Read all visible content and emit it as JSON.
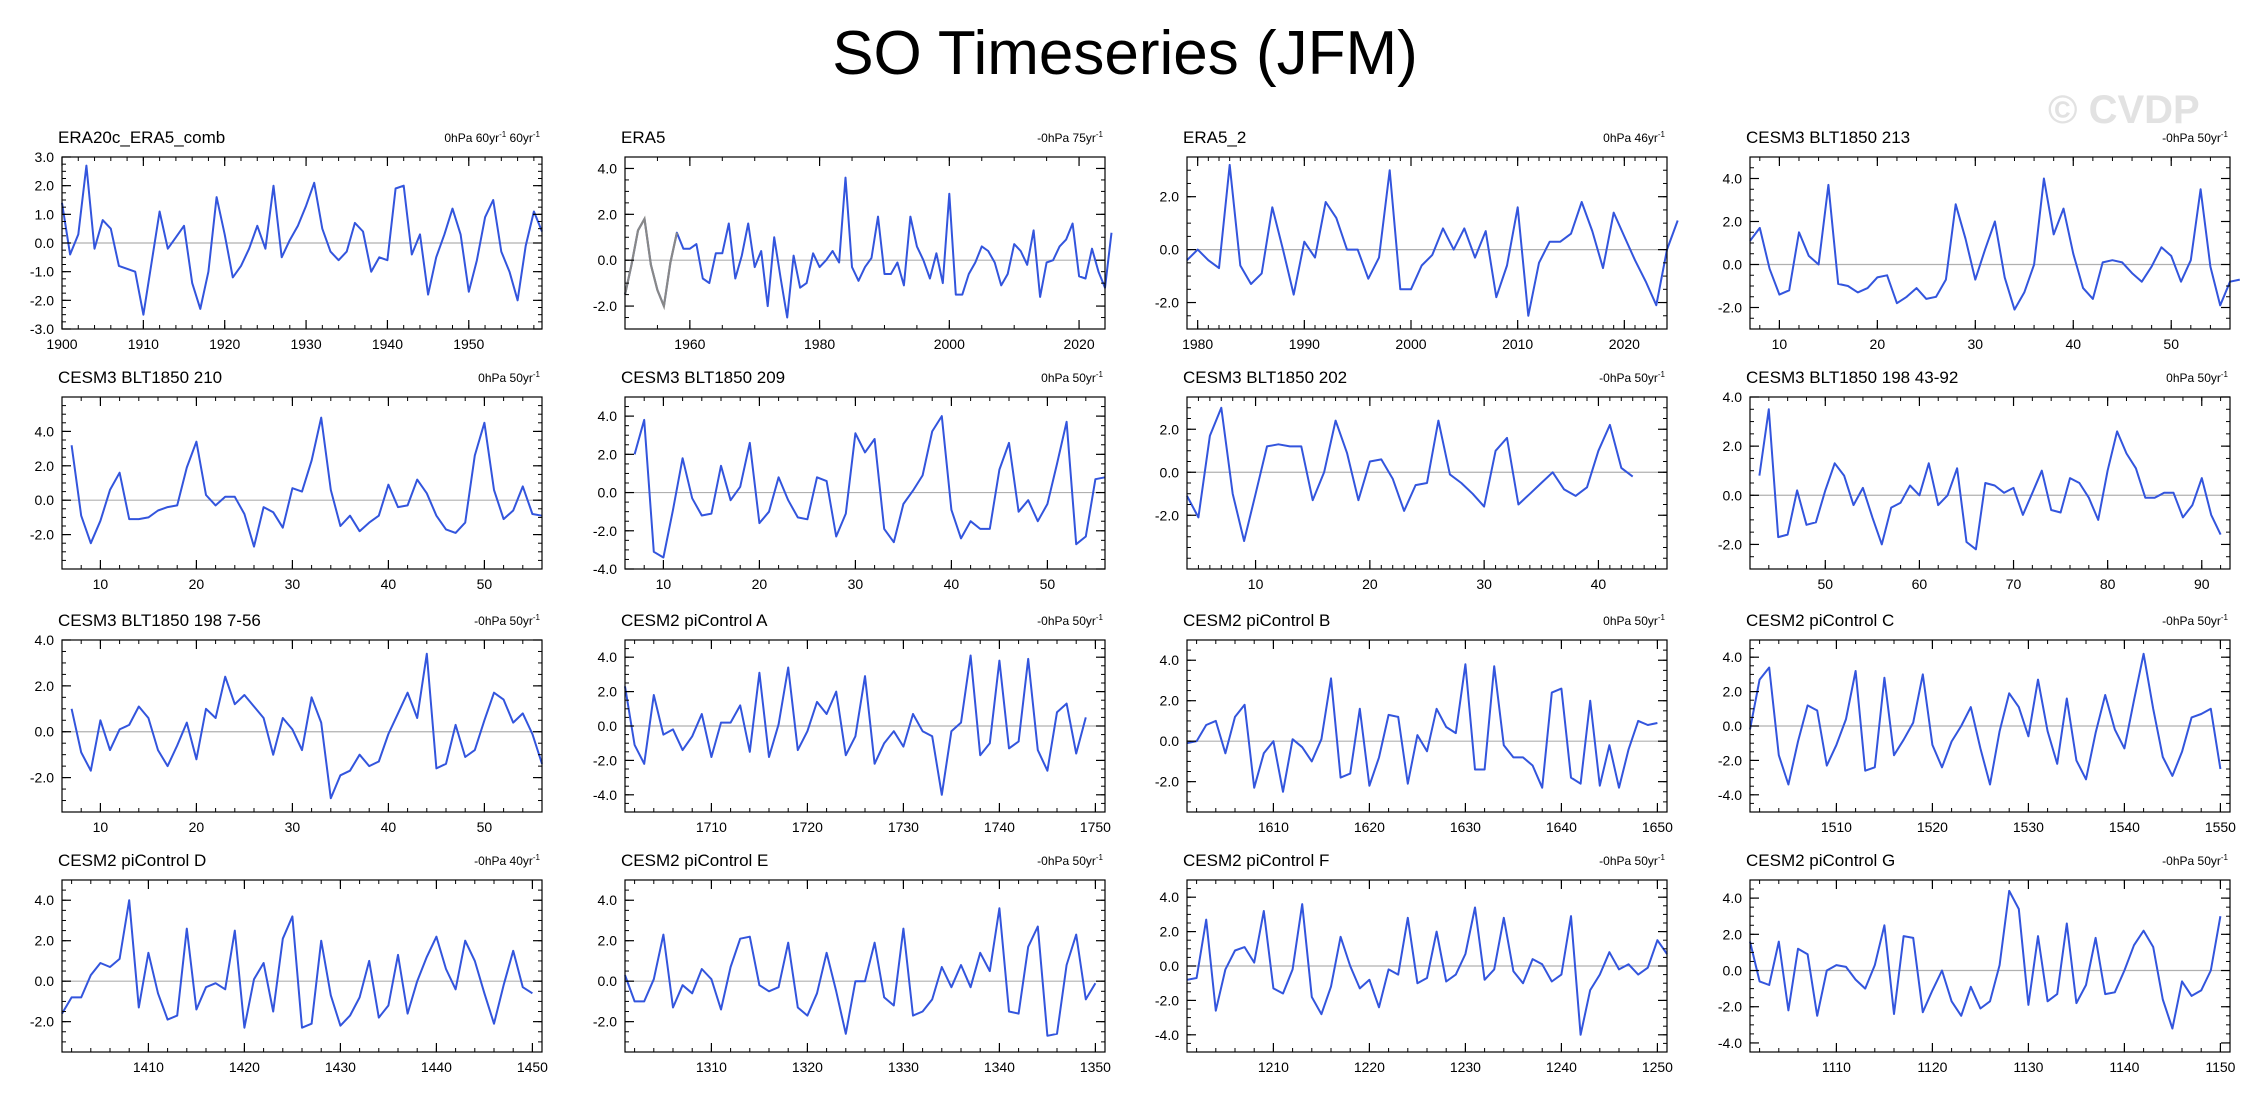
{
  "title": "SO Timeseries (JFM)",
  "watermark": "© CVDP",
  "colors": {
    "line": "#3355dd",
    "line_overlay": "#888888",
    "zero": "#b0b0b0",
    "text": "#000000"
  },
  "chart_data": [
    {
      "type": "line",
      "title": "ERA20c_ERA5_comb",
      "trend": "0hPa 60yr",
      "trend2": " 60yr",
      "trend_sup": "-1",
      "xlim": [
        1900,
        1959
      ],
      "ylim": [
        -3,
        3
      ],
      "xticks": [
        1900,
        1910,
        1920,
        1930,
        1940,
        1950
      ],
      "yticks": [
        -3,
        -2,
        -1,
        0,
        1,
        2,
        3
      ],
      "yticklabels": [
        "-3.0",
        "-2.0",
        "-1.0",
        "0.0",
        "1.0",
        "2.0",
        "3.0"
      ],
      "x0": 1900,
      "values": [
        1.4,
        -0.4,
        0.3,
        2.7,
        -0.2,
        0.8,
        0.5,
        -0.8,
        -0.9,
        -1.0,
        -2.5,
        -0.7,
        1.1,
        -0.2,
        0.2,
        0.6,
        -1.4,
        -2.3,
        -1.0,
        1.6,
        0.3,
        -1.2,
        -0.8,
        -0.2,
        0.6,
        -0.2,
        2.0,
        -0.5,
        0.1,
        0.6,
        1.3,
        2.1,
        0.5,
        -0.3,
        -0.6,
        -0.3,
        0.7,
        0.4,
        -1.0,
        -0.5,
        -0.6,
        1.9,
        2.0,
        -0.4,
        0.3,
        -1.8,
        -0.5,
        0.3,
        1.2,
        0.3,
        -1.7,
        -0.6,
        0.9,
        1.5,
        -0.3,
        -1.0,
        -2.0,
        -0.1,
        1.1,
        0.4
      ]
    },
    {
      "type": "line",
      "title": "ERA5",
      "trend": "-0hPa 75yr",
      "trend_sup": "-1",
      "xlim": [
        1950,
        2024
      ],
      "ylim": [
        -3,
        4.5
      ],
      "xticks": [
        1960,
        1980,
        2000,
        2020
      ],
      "yticks": [
        -2,
        0,
        2,
        4
      ],
      "yticklabels": [
        "-2.0",
        "0.0",
        "2.0",
        "4.0"
      ],
      "x0": 1950,
      "values": [
        -1.5,
        -0.2,
        1.3,
        1.8,
        -0.2,
        -1.3,
        -2.0,
        -0.1,
        1.2,
        0.5,
        0.5,
        0.7,
        -0.8,
        -1.0,
        0.3,
        0.3,
        1.6,
        -0.8,
        0.2,
        1.6,
        -0.3,
        0.4,
        -2.0,
        1.0,
        -0.8,
        -2.5,
        0.2,
        -1.2,
        -1.0,
        0.3,
        -0.3,
        0.0,
        0.4,
        -0.1,
        3.6,
        -0.3,
        -0.9,
        -0.3,
        0.1,
        1.9,
        -0.6,
        -0.6,
        -0.1,
        -1.1,
        1.9,
        0.6,
        0.0,
        -0.8,
        0.3,
        -1.0,
        2.9,
        -1.5,
        -1.5,
        -0.6,
        -0.1,
        0.6,
        0.4,
        -0.1,
        -1.1,
        -0.6,
        0.7,
        0.4,
        -0.2,
        1.3,
        -1.6,
        -0.1,
        0.0,
        0.6,
        0.9,
        1.6,
        -0.7,
        -0.8,
        0.5,
        -0.5,
        -1.2,
        1.2
      ]
    },
    {
      "type": "line",
      "title": "ERA5_2",
      "trend": "0hPa 46yr",
      "trend_sup": "-1",
      "xlim": [
        1979,
        2024
      ],
      "ylim": [
        -3,
        3.5
      ],
      "xticks": [
        1980,
        1990,
        2000,
        2010,
        2020
      ],
      "yticks": [
        -2,
        0,
        2
      ],
      "yticklabels": [
        "-2.0",
        "0.0",
        "2.0"
      ],
      "x0": 1979,
      "values": [
        -0.4,
        0.0,
        -0.4,
        -0.7,
        3.2,
        -0.6,
        -1.3,
        -0.9,
        1.6,
        0.0,
        -1.7,
        0.3,
        -0.3,
        1.8,
        1.2,
        0.0,
        0.0,
        -1.1,
        -0.3,
        3.0,
        -1.5,
        -1.5,
        -0.6,
        -0.2,
        0.8,
        0.0,
        0.8,
        -0.3,
        0.7,
        -1.8,
        -0.6,
        1.6,
        -2.5,
        -0.5,
        0.3,
        0.3,
        0.6,
        1.8,
        0.7,
        -0.7,
        1.4,
        0.5,
        -0.4,
        -1.2,
        -2.1,
        0.0,
        1.1
      ]
    },
    {
      "type": "line",
      "title": "CESM3 BLT1850 213",
      "trend": "-0hPa 50yr",
      "trend_sup": "-1",
      "xlim": [
        7,
        56
      ],
      "ylim": [
        -3,
        5
      ],
      "xticks": [
        10,
        20,
        30,
        40,
        50
      ],
      "yticks": [
        -2,
        0,
        2,
        4
      ],
      "yticklabels": [
        "-2.0",
        "0.0",
        "2.0",
        "4.0"
      ],
      "x0": 7,
      "values": [
        1.1,
        1.7,
        -0.2,
        -1.4,
        -1.2,
        1.5,
        0.4,
        0.0,
        3.7,
        -0.9,
        -1.0,
        -1.3,
        -1.1,
        -0.6,
        -0.5,
        -1.8,
        -1.5,
        -1.1,
        -1.6,
        -1.5,
        -0.7,
        2.8,
        1.2,
        -0.7,
        0.7,
        2.0,
        -0.6,
        -2.1,
        -1.3,
        0.0,
        4.0,
        1.4,
        2.6,
        0.5,
        -1.1,
        -1.6,
        0.1,
        0.2,
        0.1,
        -0.4,
        -0.8,
        -0.1,
        0.8,
        0.4,
        -0.8,
        0.2,
        3.5,
        -0.1,
        -1.9,
        -0.8,
        -0.7
      ]
    },
    {
      "type": "line",
      "title": "CESM3 BLT1850 210",
      "trend": "0hPa 50yr",
      "trend_sup": "-1",
      "xlim": [
        6,
        56
      ],
      "ylim": [
        -4,
        6
      ],
      "xticks": [
        10,
        20,
        30,
        40,
        50
      ],
      "yticks": [
        -2,
        0,
        2,
        4
      ],
      "yticklabels": [
        "-2.0",
        "0.0",
        "2.0",
        "4.0"
      ],
      "x0": 7,
      "values": [
        3.2,
        -0.9,
        -2.5,
        -1.2,
        0.6,
        1.6,
        -1.1,
        -1.1,
        -1.0,
        -0.6,
        -0.4,
        -0.3,
        1.9,
        3.4,
        0.3,
        -0.3,
        0.2,
        0.2,
        -0.8,
        -2.7,
        -0.4,
        -0.7,
        -1.6,
        0.7,
        0.5,
        2.3,
        4.8,
        0.6,
        -1.5,
        -0.9,
        -1.8,
        -1.3,
        -0.9,
        0.9,
        -0.4,
        -0.3,
        1.2,
        0.4,
        -0.9,
        -1.7,
        -1.9,
        -1.3,
        2.6,
        4.5,
        0.6,
        -1.1,
        -0.6,
        0.8,
        -0.8,
        -0.9
      ]
    },
    {
      "type": "line",
      "title": "CESM3 BLT1850 209",
      "trend": "0hPa 50yr",
      "trend_sup": "-1",
      "xlim": [
        6,
        56
      ],
      "ylim": [
        -4,
        5
      ],
      "xticks": [
        10,
        20,
        30,
        40,
        50
      ],
      "yticks": [
        -4,
        -2,
        0,
        2,
        4
      ],
      "yticklabels": [
        "-4.0",
        "-2.0",
        "0.0",
        "2.0",
        "4.0"
      ],
      "x0": 7,
      "values": [
        2.0,
        3.8,
        -3.1,
        -3.4,
        -0.9,
        1.8,
        -0.3,
        -1.2,
        -1.1,
        1.4,
        -0.4,
        0.3,
        2.6,
        -1.6,
        -1.0,
        0.8,
        -0.4,
        -1.3,
        -1.4,
        0.8,
        0.6,
        -2.3,
        -1.1,
        3.1,
        2.1,
        2.8,
        -1.9,
        -2.6,
        -0.6,
        0.1,
        0.9,
        3.2,
        4.0,
        -0.9,
        -2.4,
        -1.5,
        -1.9,
        -1.9,
        1.2,
        2.6,
        -1.0,
        -0.4,
        -1.5,
        -0.6,
        1.5,
        3.7,
        -2.7,
        -2.3,
        0.7,
        0.8
      ]
    },
    {
      "type": "line",
      "title": "CESM3 BLT1850 202",
      "trend": "-0hPa 50yr",
      "trend_sup": "-1",
      "xlim": [
        4,
        46
      ],
      "ylim": [
        -4.5,
        3.5
      ],
      "xticks": [
        10,
        20,
        30,
        40
      ],
      "yticks": [
        -2,
        0,
        2
      ],
      "yticklabels": [
        "-2.0",
        "0.0",
        "2.0"
      ],
      "x0": 4,
      "values": [
        -1.1,
        -2.1,
        1.7,
        3.0,
        -1.0,
        -3.2,
        -1.0,
        1.2,
        1.3,
        1.2,
        1.2,
        -1.3,
        0.0,
        2.4,
        0.9,
        -1.3,
        0.5,
        0.6,
        -0.3,
        -1.8,
        -0.6,
        -0.5,
        2.4,
        -0.1,
        -0.5,
        -1.0,
        -1.6,
        1.0,
        1.6,
        -1.5,
        -1.0,
        -0.5,
        0.0,
        -0.8,
        -1.1,
        -0.7,
        1.0,
        2.2,
        0.2,
        -0.2
      ]
    },
    {
      "type": "line",
      "title": "CESM3 BLT1850 198 43-92",
      "trend": "0hPa 50yr",
      "trend_sup": "-1",
      "xlim": [
        42,
        93
      ],
      "ylim": [
        -3,
        4
      ],
      "xticks": [
        50,
        60,
        70,
        80,
        90
      ],
      "yticks": [
        -2,
        0,
        2,
        4
      ],
      "yticklabels": [
        "-2.0",
        "0.0",
        "2.0",
        "4.0"
      ],
      "x0": 43,
      "values": [
        0.8,
        3.5,
        -1.7,
        -1.6,
        0.2,
        -1.2,
        -1.1,
        0.2,
        1.3,
        0.8,
        -0.4,
        0.3,
        -0.9,
        -2.0,
        -0.5,
        -0.3,
        0.4,
        0.0,
        1.3,
        -0.4,
        0.0,
        1.1,
        -1.9,
        -2.2,
        0.5,
        0.4,
        0.1,
        0.3,
        -0.8,
        0.1,
        1.0,
        -0.6,
        -0.7,
        0.7,
        0.5,
        -0.1,
        -1.0,
        1.0,
        2.6,
        1.7,
        1.1,
        -0.1,
        -0.1,
        0.1,
        0.1,
        -0.9,
        -0.4,
        0.7,
        -0.8,
        -1.6
      ]
    },
    {
      "type": "line",
      "title": "CESM3 BLT1850 198 7-56",
      "trend": "-0hPa 50yr",
      "trend_sup": "-1",
      "xlim": [
        6,
        56
      ],
      "ylim": [
        -3.5,
        4
      ],
      "xticks": [
        10,
        20,
        30,
        40,
        50
      ],
      "yticks": [
        -2,
        0,
        2,
        4
      ],
      "yticklabels": [
        "-2.0",
        "0.0",
        "2.0",
        "4.0"
      ],
      "x0": 7,
      "values": [
        1.0,
        -0.9,
        -1.7,
        0.5,
        -0.8,
        0.1,
        0.3,
        1.1,
        0.6,
        -0.8,
        -1.5,
        -0.6,
        0.4,
        -1.2,
        1.0,
        0.6,
        2.4,
        1.2,
        1.6,
        1.1,
        0.6,
        -1.0,
        0.6,
        0.1,
        -0.8,
        1.5,
        0.4,
        -2.9,
        -1.9,
        -1.7,
        -1.0,
        -1.5,
        -1.3,
        -0.1,
        0.8,
        1.7,
        0.6,
        3.4,
        -1.6,
        -1.4,
        0.3,
        -1.1,
        -0.8,
        0.5,
        1.7,
        1.4,
        0.4,
        0.8,
        -0.1,
        -1.4
      ]
    },
    {
      "type": "line",
      "title": "CESM2 piControl A",
      "trend": "-0hPa 50yr",
      "trend_sup": "-1",
      "xlim": [
        1701,
        1751
      ],
      "ylim": [
        -5,
        5
      ],
      "xticks": [
        1710,
        1720,
        1730,
        1740,
        1750
      ],
      "yticks": [
        -4,
        -2,
        0,
        2,
        4
      ],
      "yticklabels": [
        "-4.0",
        "-2.0",
        "0.0",
        "2.0",
        "4.0"
      ],
      "x0": 1701,
      "values": [
        2.3,
        -1.1,
        -2.2,
        1.8,
        -0.5,
        -0.2,
        -1.4,
        -0.6,
        0.7,
        -1.8,
        0.2,
        0.2,
        1.2,
        -1.5,
        3.1,
        -1.8,
        0.1,
        3.4,
        -1.4,
        -0.3,
        1.4,
        0.7,
        2.0,
        -1.7,
        -0.6,
        2.9,
        -2.2,
        -1.0,
        -0.3,
        -1.2,
        0.7,
        -0.3,
        -0.6,
        -4.0,
        -0.3,
        0.2,
        4.1,
        -1.7,
        -1.0,
        3.8,
        -1.3,
        -0.9,
        3.9,
        -1.4,
        -2.6,
        0.8,
        1.3,
        -1.6,
        0.5
      ]
    },
    {
      "type": "line",
      "title": "CESM2 piControl B",
      "trend": "0hPa 50yr",
      "trend_sup": "-1",
      "xlim": [
        1601,
        1651
      ],
      "ylim": [
        -3.5,
        5
      ],
      "xticks": [
        1610,
        1620,
        1630,
        1640,
        1650
      ],
      "yticks": [
        -2,
        0,
        2,
        4
      ],
      "yticklabels": [
        "-2.0",
        "0.0",
        "2.0",
        "4.0"
      ],
      "x0": 1601,
      "values": [
        -0.1,
        0.0,
        0.8,
        1.0,
        -0.6,
        1.2,
        1.8,
        -2.3,
        -0.6,
        0.0,
        -2.5,
        0.1,
        -0.3,
        -1.0,
        0.1,
        3.1,
        -1.8,
        -1.6,
        1.6,
        -2.2,
        -0.8,
        1.3,
        1.2,
        -2.1,
        0.3,
        -0.5,
        1.6,
        0.7,
        0.4,
        3.8,
        -1.4,
        -1.4,
        3.7,
        -0.2,
        -0.8,
        -0.8,
        -1.2,
        -2.3,
        2.4,
        2.6,
        -1.8,
        -2.1,
        2.0,
        -2.2,
        -0.2,
        -2.3,
        -0.4,
        1.0,
        0.8,
        0.9
      ]
    },
    {
      "type": "line",
      "title": "CESM2 piControl C",
      "trend": "-0hPa 50yr",
      "trend_sup": "-1",
      "xlim": [
        1501,
        1551
      ],
      "ylim": [
        -5,
        5
      ],
      "xticks": [
        1510,
        1520,
        1530,
        1540,
        1550
      ],
      "yticks": [
        -4,
        -2,
        0,
        2,
        4
      ],
      "yticklabels": [
        "-4.0",
        "-2.0",
        "0.0",
        "2.0",
        "4.0"
      ],
      "x0": 1501,
      "values": [
        -0.2,
        2.7,
        3.4,
        -1.7,
        -3.4,
        -0.9,
        1.2,
        0.9,
        -2.3,
        -1.1,
        0.4,
        3.2,
        -2.6,
        -2.4,
        2.8,
        -1.7,
        -0.8,
        0.2,
        3.0,
        -1.1,
        -2.4,
        -0.9,
        0.0,
        1.1,
        -1.3,
        -3.4,
        -0.3,
        1.9,
        1.1,
        -0.6,
        2.7,
        -0.3,
        -2.2,
        1.6,
        -2.0,
        -3.1,
        -0.4,
        1.8,
        -0.2,
        -1.3,
        1.5,
        4.2,
        1.0,
        -1.8,
        -2.9,
        -1.5,
        0.5,
        0.7,
        1.0,
        -2.5
      ]
    },
    {
      "type": "line",
      "title": "CESM2 piControl D",
      "trend": "-0hPa 40yr",
      "trend_sup": "-1",
      "xlim": [
        1401,
        1451
      ],
      "ylim": [
        -3.5,
        5
      ],
      "xticks": [
        1410,
        1420,
        1430,
        1440,
        1450
      ],
      "yticks": [
        -2,
        0,
        2,
        4
      ],
      "yticklabels": [
        "-2.0",
        "0.0",
        "2.0",
        "4.0"
      ],
      "x0": 1401,
      "values": [
        -1.6,
        -0.8,
        -0.8,
        0.3,
        0.9,
        0.7,
        1.1,
        4.0,
        -1.3,
        1.4,
        -0.6,
        -1.9,
        -1.7,
        2.6,
        -1.4,
        -0.3,
        -0.1,
        -0.4,
        2.5,
        -2.3,
        0.1,
        0.9,
        -1.5,
        2.1,
        3.2,
        -2.3,
        -2.1,
        2.0,
        -0.7,
        -2.2,
        -1.7,
        -0.8,
        1.0,
        -1.8,
        -1.2,
        1.3,
        -1.6,
        0.0,
        1.2,
        2.2,
        0.6,
        -0.4,
        2.0,
        1.0,
        -0.6,
        -2.1,
        -0.2,
        1.5,
        -0.3,
        -0.6
      ]
    },
    {
      "type": "line",
      "title": "CESM2 piControl E",
      "trend": "-0hPa 50yr",
      "trend_sup": "-1",
      "xlim": [
        1301,
        1351
      ],
      "ylim": [
        -3.5,
        5
      ],
      "xticks": [
        1310,
        1320,
        1330,
        1340,
        1350
      ],
      "yticks": [
        -2,
        0,
        2,
        4
      ],
      "yticklabels": [
        "-2.0",
        "0.0",
        "2.0",
        "4.0"
      ],
      "x0": 1301,
      "values": [
        0.3,
        -1.0,
        -1.0,
        0.1,
        2.3,
        -1.3,
        -0.2,
        -0.6,
        0.6,
        0.1,
        -1.4,
        0.7,
        2.1,
        2.2,
        -0.2,
        -0.5,
        -0.3,
        1.9,
        -1.3,
        -1.7,
        -0.6,
        1.4,
        -0.5,
        -2.6,
        0.0,
        0.0,
        1.9,
        -0.8,
        -1.2,
        2.6,
        -1.7,
        -1.5,
        -0.9,
        0.7,
        -0.3,
        0.8,
        -0.3,
        1.4,
        0.5,
        3.6,
        -1.5,
        -1.6,
        1.7,
        2.7,
        -2.7,
        -2.6,
        0.8,
        2.3,
        -0.9,
        -0.1
      ]
    },
    {
      "type": "line",
      "title": "CESM2 piControl F",
      "trend": "-0hPa 50yr",
      "trend_sup": "-1",
      "xlim": [
        1201,
        1251
      ],
      "ylim": [
        -5,
        5
      ],
      "xticks": [
        1210,
        1220,
        1230,
        1240,
        1250
      ],
      "yticks": [
        -4,
        -2,
        0,
        2,
        4
      ],
      "yticklabels": [
        "-4.0",
        "-2.0",
        "0.0",
        "2.0",
        "4.0"
      ],
      "x0": 1201,
      "values": [
        -0.8,
        -0.7,
        2.7,
        -2.6,
        -0.2,
        0.9,
        1.1,
        0.2,
        3.2,
        -1.3,
        -1.6,
        -0.2,
        3.6,
        -1.8,
        -2.8,
        -1.2,
        1.7,
        0.0,
        -1.3,
        -0.8,
        -2.4,
        -0.2,
        -0.5,
        2.8,
        -1.0,
        -0.7,
        2.0,
        -0.9,
        -0.5,
        0.7,
        3.4,
        -0.8,
        -0.2,
        2.8,
        -0.3,
        -1.0,
        0.4,
        0.1,
        -0.9,
        -0.5,
        2.9,
        -4.0,
        -1.4,
        -0.5,
        0.8,
        -0.2,
        0.1,
        -0.5,
        -0.1,
        1.5,
        0.7
      ]
    },
    {
      "type": "line",
      "title": "CESM2 piControl G",
      "trend": "-0hPa 50yr",
      "trend_sup": "-1",
      "xlim": [
        1101,
        1151
      ],
      "ylim": [
        -4.5,
        5
      ],
      "xticks": [
        1110,
        1120,
        1130,
        1140,
        1150
      ],
      "yticks": [
        -4,
        -2,
        0,
        2,
        4
      ],
      "yticklabels": [
        "-4.0",
        "-2.0",
        "0.0",
        "2.0",
        "4.0"
      ],
      "x0": 1101,
      "values": [
        1.6,
        -0.6,
        -0.8,
        1.6,
        -2.2,
        1.2,
        0.9,
        -2.5,
        0.0,
        0.3,
        0.2,
        -0.5,
        -1.0,
        0.3,
        2.5,
        -2.4,
        1.9,
        1.8,
        -2.3,
        -1.1,
        0.0,
        -1.7,
        -2.5,
        -0.9,
        -2.1,
        -1.7,
        0.3,
        4.4,
        3.4,
        -1.9,
        1.9,
        -1.7,
        -1.3,
        2.6,
        -1.8,
        -0.8,
        1.8,
        -1.3,
        -1.2,
        0.0,
        1.4,
        2.2,
        1.3,
        -1.6,
        -3.2,
        -0.6,
        -1.4,
        -1.1,
        0.0,
        3.0
      ]
    }
  ]
}
